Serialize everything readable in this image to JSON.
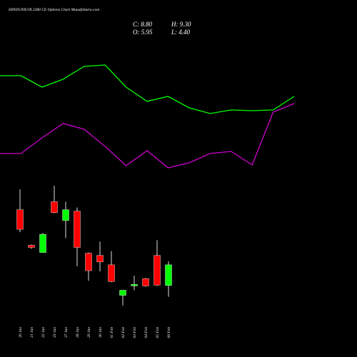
{
  "chart_data": [
    {
      "type": "line",
      "categories": [
        null,
        null,
        null,
        null,
        null,
        null,
        null,
        null,
        null,
        null,
        null,
        null,
        null,
        null,
        null
      ],
      "series": [
        {
          "color": "#00ff00",
          "values": [
            144,
            144,
            128,
            139,
            157,
            159,
            128,
            108,
            115,
            99,
            91,
            96,
            95,
            96,
            115
          ]
        },
        {
          "color": "#cc00cc",
          "values": [
            35,
            35,
            57,
            77,
            69,
            45,
            18,
            39,
            15,
            22,
            35,
            38,
            19,
            93,
            105
          ]
        }
      ],
      "ylim": [
        0,
        250
      ]
    },
    {
      "type": "candlestick",
      "title": "HINDUNILVR 2380 CE Options Chart MunafaSutra.com",
      "ohlc_text": [
        "C: 8.80",
        "H: 9.30",
        "O: 5.95",
        "L: 4.40"
      ],
      "categories": [
        "20 Jan",
        "21 Jan",
        "22 Jan",
        "23 Jan",
        "27 Jan",
        "28 Jan",
        "29 Jan",
        "30 Jan",
        "01 Feb",
        "02 Feb",
        "03 Feb",
        "04 Feb",
        "05 Feb",
        "06 Feb"
      ],
      "open": [
        16.4,
        11.5,
        10.5,
        17.5,
        14.9,
        16.2,
        10.4,
        10.1,
        8.8,
        4.6,
        5.9,
        6.9,
        10.1,
        5.95
      ],
      "high": [
        19.2,
        11.6,
        13.2,
        19.7,
        17.5,
        16.7,
        10.5,
        12.0,
        10.7,
        5.3,
        7.3,
        7.0,
        12.2,
        9.3
      ],
      "low": [
        13.3,
        11.0,
        10.5,
        15.9,
        12.5,
        8.6,
        6.6,
        7.9,
        6.4,
        3.2,
        5.3,
        5.8,
        5.9,
        4.4
      ],
      "close": [
        13.7,
        11.2,
        13.0,
        16.0,
        16.4,
        11.2,
        8.0,
        9.2,
        6.5,
        5.3,
        6.1,
        5.9,
        6.0,
        8.8
      ],
      "up_color": "#00ff00",
      "down_color": "#ff0000",
      "ylim": [
        2,
        20.7
      ]
    }
  ]
}
